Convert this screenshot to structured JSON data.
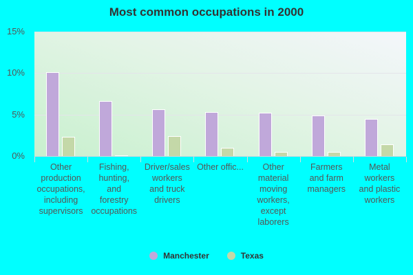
{
  "title": "Most common occupations in 2000",
  "colors": {
    "manchester": "#c0a8da",
    "texas": "#c4d8a8"
  },
  "legend": [
    {
      "label": "Manchester",
      "color": "#c0a8da"
    },
    {
      "label": "Texas",
      "color": "#c4d8a8"
    }
  ],
  "y_ticks": [
    "15%",
    "10%",
    "5%",
    "0%"
  ],
  "chart_data": {
    "type": "bar",
    "title": "Most common occupations in 2000",
    "xlabel": "",
    "ylabel": "",
    "ylim": [
      0,
      15
    ],
    "y_ticks": [
      0,
      5,
      10,
      15
    ],
    "y_tick_labels": [
      "0%",
      "5%",
      "10%",
      "15%"
    ],
    "grid": true,
    "legend_position": "bottom",
    "categories": [
      "Other production occupations, including supervisors",
      "Fishing, hunting, and forestry occupations",
      "Driver/sales workers and truck drivers",
      "Other offic...",
      "Other material moving workers, except laborers",
      "Farmers and farm managers",
      "Metal workers and plastic workers"
    ],
    "series": [
      {
        "name": "Manchester",
        "values": [
          10.1,
          6.6,
          5.6,
          5.3,
          5.2,
          4.9,
          4.5
        ]
      },
      {
        "name": "Texas",
        "values": [
          2.3,
          0.1,
          2.4,
          1.0,
          0.5,
          0.5,
          1.4
        ]
      }
    ]
  },
  "x_labels": [
    "Other\nproduction\noccupations,\nincluding\nsupervisors",
    "Fishing,\nhunting,\nand\nforestry\noccupations",
    "Driver/sales\nworkers\nand truck\ndrivers",
    "Other offic...",
    "Other\nmaterial\nmoving\nworkers,\nexcept\nlaborers",
    "Farmers\nand farm\nmanagers",
    "Metal\nworkers\nand plastic\nworkers"
  ]
}
